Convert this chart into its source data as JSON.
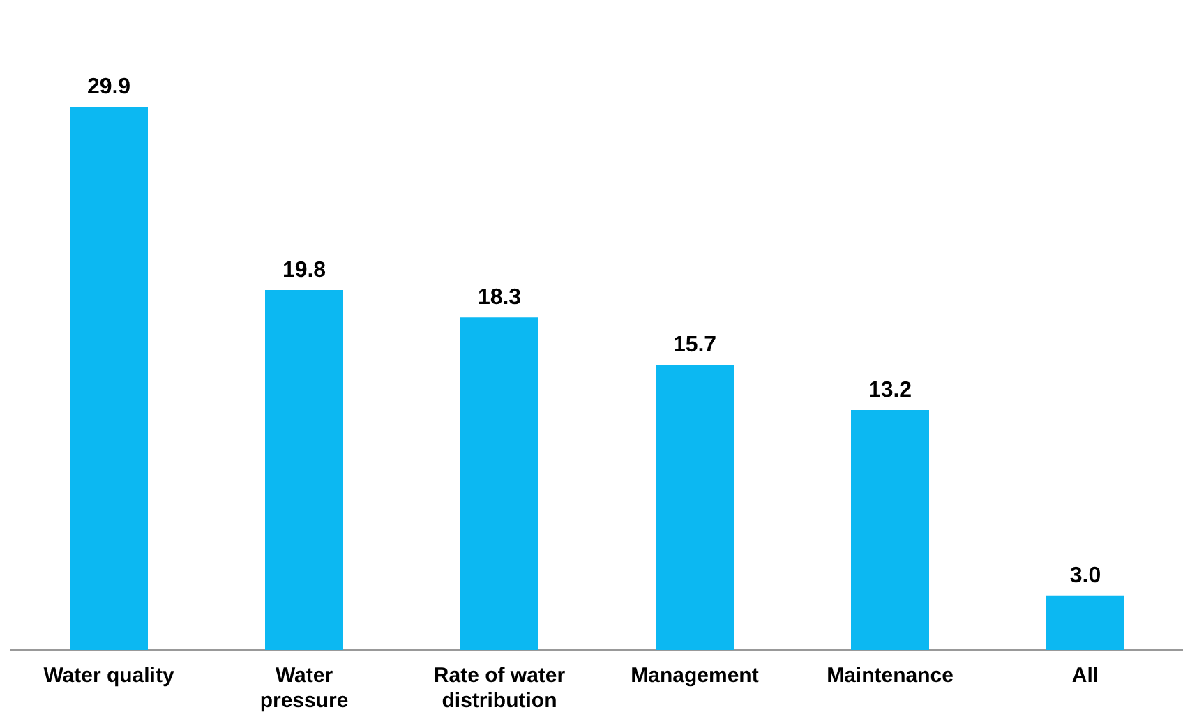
{
  "chart_data": {
    "type": "bar",
    "categories": [
      "Water quality",
      "Water pressure",
      "Rate of water distribution",
      "Management",
      "Maintenance",
      "All"
    ],
    "values": [
      29.9,
      19.8,
      18.3,
      15.7,
      13.2,
      3.0
    ],
    "value_labels": [
      "29.9",
      "19.8",
      "18.3",
      "15.7",
      "13.2",
      "3.0"
    ],
    "color": "#0cb8f2",
    "grid": false,
    "legend": false,
    "relative": false
  }
}
